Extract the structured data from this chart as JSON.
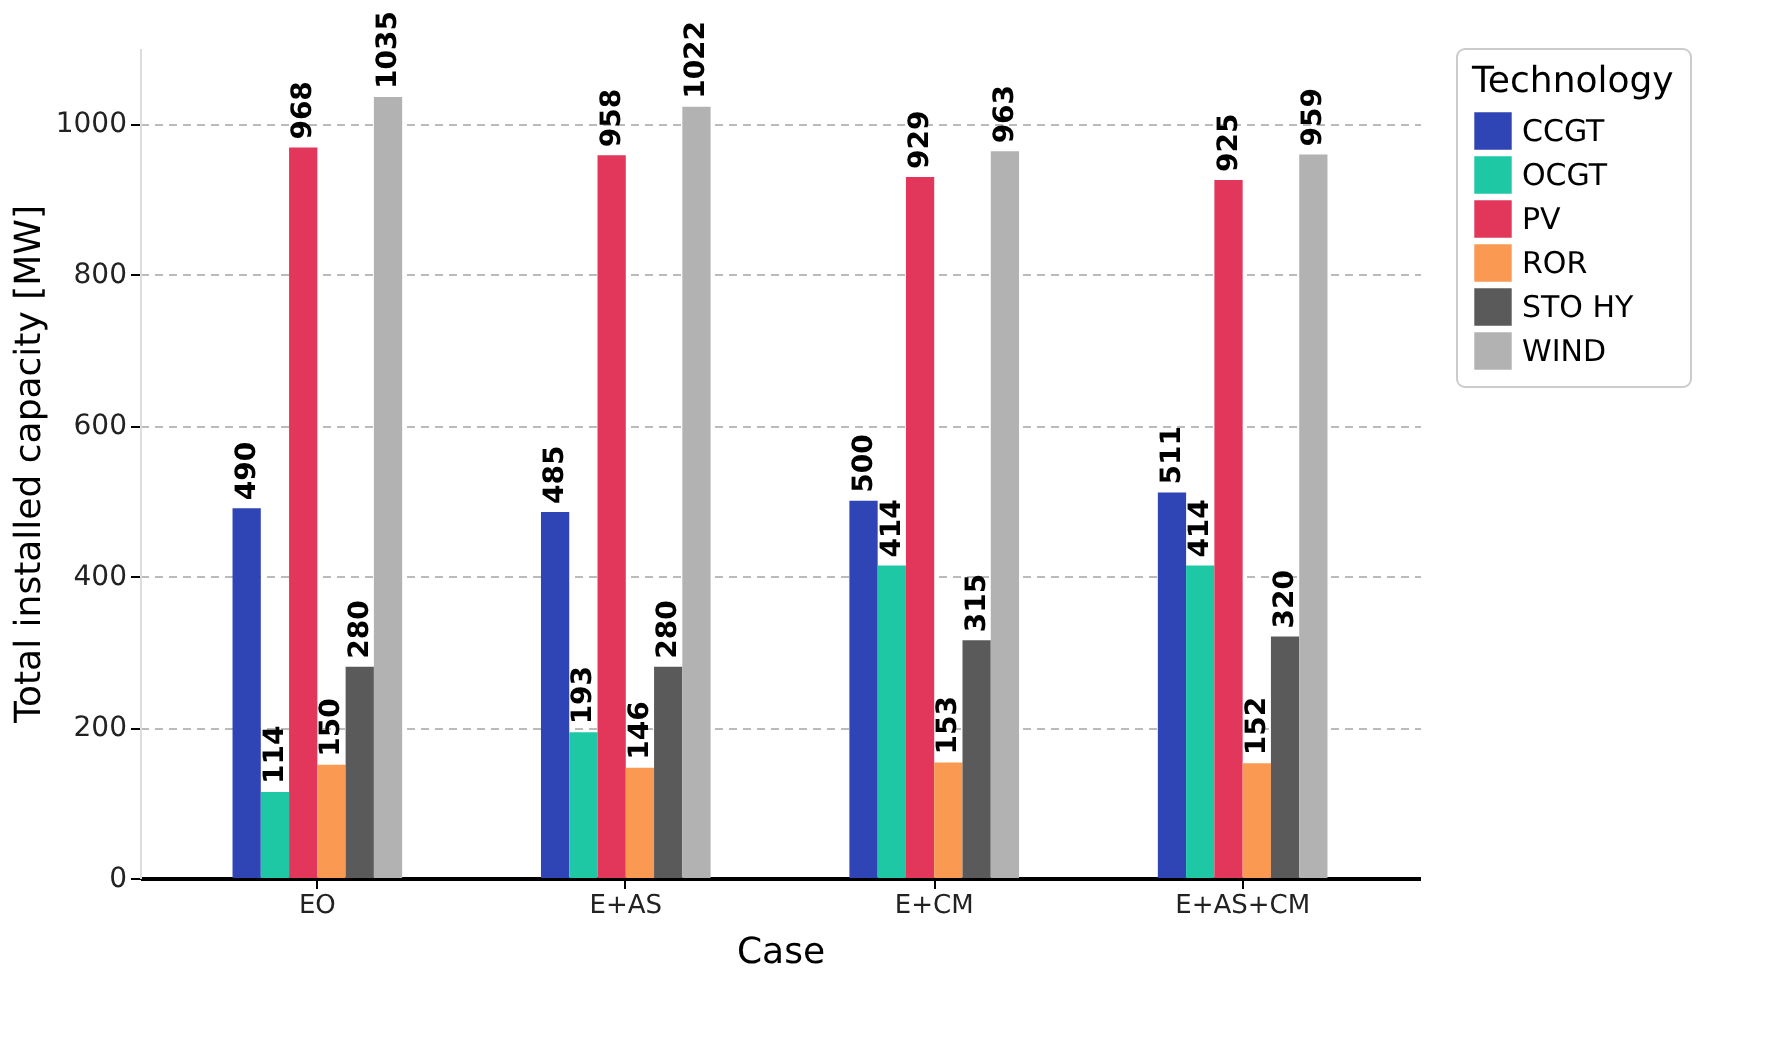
{
  "chart_data": {
    "type": "bar",
    "xlabel": "Case",
    "ylabel": "Total installed capacity [MW]",
    "legend_title": "Technology",
    "categories": [
      "EO",
      "E+AS",
      "E+CM",
      "E+AS+CM"
    ],
    "series": [
      {
        "name": "CCGT",
        "color": "#2f45b5",
        "values": [
          490,
          485,
          500,
          511
        ]
      },
      {
        "name": "OCGT",
        "color": "#1fc8a4",
        "values": [
          114,
          193,
          414,
          414
        ]
      },
      {
        "name": "PV",
        "color": "#e2365a",
        "values": [
          968,
          958,
          929,
          925
        ]
      },
      {
        "name": "ROR",
        "color": "#fa9a52",
        "values": [
          150,
          146,
          153,
          152
        ]
      },
      {
        "name": "STO HY",
        "color": "#5a5a5a",
        "values": [
          280,
          280,
          315,
          320
        ]
      },
      {
        "name": "WIND",
        "color": "#b2b2b2",
        "values": [
          1035,
          1022,
          963,
          959
        ]
      }
    ],
    "ylim": [
      0,
      1100
    ],
    "yticks": [
      0,
      200,
      400,
      600,
      800,
      1000
    ],
    "grid": "y",
    "legend": "top right",
    "data_labels": true
  }
}
